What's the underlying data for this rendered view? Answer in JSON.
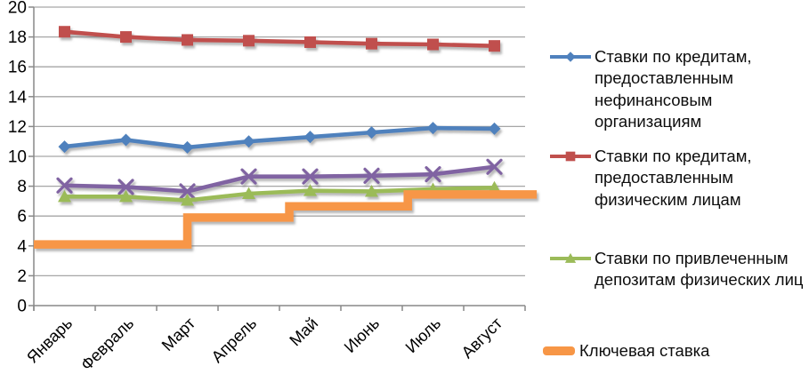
{
  "chart_data": {
    "type": "line",
    "title": "",
    "categories": [
      "Январь",
      "Февраль",
      "Март",
      "Апрель",
      "Май",
      "Июнь",
      "Июль",
      "Август"
    ],
    "y_axis": {
      "min": 0,
      "max": 20,
      "step": 2,
      "ticks": [
        0,
        2,
        4,
        6,
        8,
        10,
        12,
        14,
        16,
        18,
        20
      ]
    },
    "grid": true,
    "legend_position": "right",
    "series": [
      {
        "name": "Ставки по кредитам, предоставленным нефинансовым организациям",
        "marker": "diamond",
        "color": "#4F81BD",
        "values": [
          10.65,
          11.1,
          10.6,
          11.0,
          11.3,
          11.6,
          11.9,
          11.85
        ]
      },
      {
        "name": "Ставки по кредитам, предоставленным физическим лицам",
        "marker": "square",
        "color": "#C0504D",
        "values": [
          18.35,
          18.0,
          17.8,
          17.75,
          17.65,
          17.55,
          17.5,
          17.4
        ]
      },
      {
        "name": "",
        "marker": "x",
        "color": "#8064A2",
        "values": [
          8.05,
          7.95,
          7.65,
          8.65,
          8.65,
          8.7,
          8.8,
          9.3
        ]
      },
      {
        "name": "Ставки по привлеченным депозитам физических лиц",
        "marker": "triangle",
        "color": "#9BBB59",
        "values": [
          7.3,
          7.3,
          7.05,
          7.5,
          7.7,
          7.65,
          7.8,
          7.9
        ]
      }
    ],
    "key_rate": {
      "name": "Ключевая ставка",
      "color": "#F79646",
      "type": "step",
      "levels": [
        4.1,
        5.9,
        6.65,
        7.45
      ],
      "points": [
        [
          -0.5,
          4.1
        ],
        [
          2.0,
          4.1
        ],
        [
          2.0,
          5.9
        ],
        [
          3.66,
          5.9
        ],
        [
          3.66,
          6.65
        ],
        [
          5.59,
          6.65
        ],
        [
          5.59,
          7.45
        ],
        [
          7.69,
          7.45
        ]
      ]
    }
  },
  "legend": {
    "items": [
      {
        "marker": "diamond",
        "color": "#4F81BD",
        "lines": [
          "Ставки по кредитам,",
          "предоставленным",
          "нефинансовым",
          "организациям"
        ]
      },
      {
        "marker": "square",
        "color": "#C0504D",
        "lines": [
          "Ставки по кредитам,",
          "предоставленным",
          "физическим лицам"
        ]
      },
      {
        "marker": "triangle",
        "color": "#9BBB59",
        "lines": [
          "Ставки по привлеченным",
          "депозитам физических лиц"
        ]
      },
      {
        "marker": "thick-line",
        "color": "#F79646",
        "lines": [
          "Ключевая ставка"
        ]
      }
    ]
  },
  "colors": {
    "gridline": "#A6A6A6",
    "axis": "#898989",
    "text": "#000000"
  }
}
